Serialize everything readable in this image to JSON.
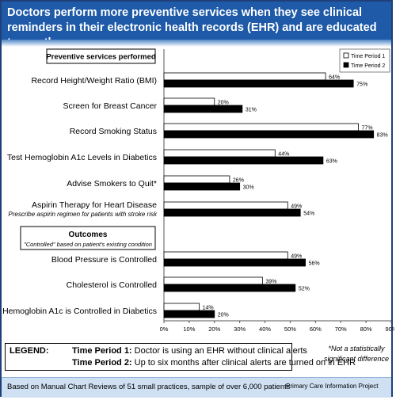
{
  "header": {
    "title": "Doctors perform more preventive services when they see clinical reminders in their electronic health records (EHR) and are educated to use them."
  },
  "colors": {
    "header_bg": "#1e5aa8",
    "series_1": "#ffffff",
    "series_2": "#000000",
    "footer_bg": "#cfe0f3"
  },
  "chart_data": {
    "type": "bar",
    "orientation": "horizontal",
    "section_titles": [
      "Preventive services performed",
      "Outcomes"
    ],
    "outcomes_subtitle": "\"Controlled\" based on patient's existing condition",
    "categories": [
      "Record Height/Weight Ratio (BMI)",
      "Screen for Breast Cancer",
      "Record Smoking Status",
      "Test Hemoglobin A1c Levels in Diabetics",
      "Advise Smokers to Quit*",
      "Aspirin Therapy for Heart Disease",
      "Blood Pressure is Controlled",
      "Cholesterol is Controlled",
      "Hemoglobin A1c is Controlled in Diabetics"
    ],
    "category_sublabels": [
      "",
      "",
      "",
      "",
      "",
      "Prescribe aspirin regimen for patients with stroke risk",
      "",
      "",
      ""
    ],
    "series": [
      {
        "name": "Time Period 1",
        "values": [
          64,
          20,
          77,
          44,
          26,
          49,
          49,
          39,
          14
        ]
      },
      {
        "name": "Time Period 2",
        "values": [
          75,
          31,
          83,
          63,
          30,
          54,
          56,
          52,
          20
        ]
      }
    ],
    "xlim": [
      0,
      90
    ],
    "xticks": [
      "0%",
      "10%",
      "20%",
      "30%",
      "40%",
      "50%",
      "60%",
      "70%",
      "80%",
      "90%"
    ],
    "grid": false,
    "legend": "top-right"
  },
  "legend_box": {
    "title": "LEGEND:",
    "period1_label": "Time Period 1:",
    "period1_text": "Doctor is using an EHR without clinical alerts",
    "period2_label": "Time Period 2:",
    "period2_text": "Up to six months after clinical alerts are turned on in EHR"
  },
  "note": "*Not a statistically significant difference",
  "footer": {
    "left": "Based on Manual Chart Reviews of 51 small practices, sample of over 6,000 patients",
    "right": "Primary Care Information Project"
  }
}
